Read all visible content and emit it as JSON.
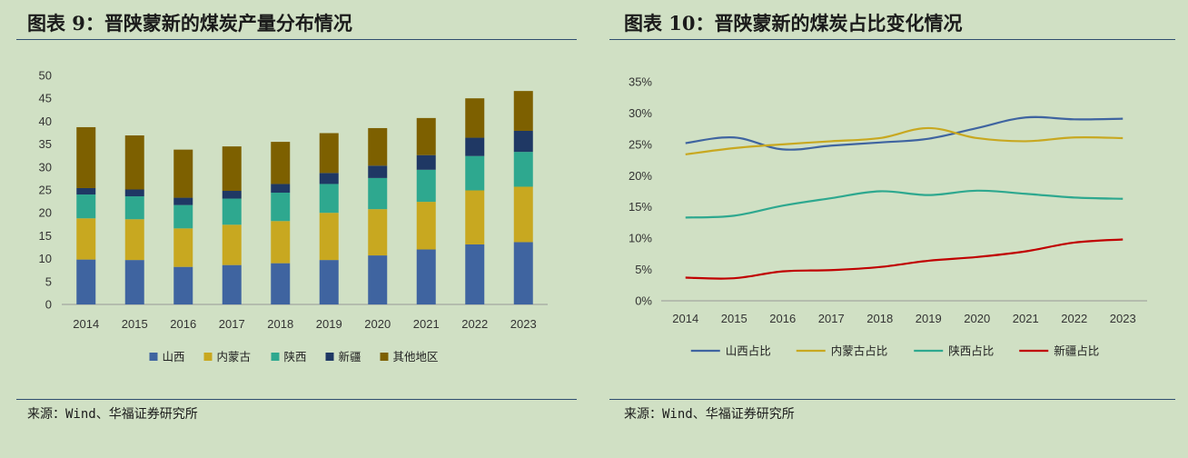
{
  "left_panel": {
    "title": "图表 9：晋陕蒙新的煤炭产量分布情况",
    "source": "来源：Wind、华福证券研究所"
  },
  "right_panel": {
    "title": "图表 10：晋陕蒙新的煤炭占比变化情况",
    "source": "来源：Wind、华福证券研究所"
  },
  "chart_data": [
    {
      "type": "bar",
      "stacked": true,
      "title": "",
      "categories": [
        "2014",
        "2015",
        "2016",
        "2017",
        "2018",
        "2019",
        "2020",
        "2021",
        "2022",
        "2023"
      ],
      "ylim": [
        0,
        50
      ],
      "yticks": [
        0,
        5,
        10,
        15,
        20,
        25,
        30,
        35,
        40,
        45,
        50
      ],
      "legend_position": "bottom",
      "series": [
        {
          "name": "山西",
          "color": "#3f64a0",
          "values": [
            9.8,
            9.7,
            8.2,
            8.6,
            9.0,
            9.7,
            10.7,
            12.0,
            13.1,
            13.6
          ]
        },
        {
          "name": "内蒙古",
          "color": "#c8a820",
          "values": [
            9.0,
            8.9,
            8.4,
            8.8,
            9.2,
            10.3,
            10.1,
            10.4,
            11.8,
            12.1
          ]
        },
        {
          "name": "陕西",
          "color": "#2ea88f",
          "values": [
            5.2,
            5.0,
            5.1,
            5.7,
            6.2,
            6.3,
            6.8,
            7.0,
            7.5,
            7.6
          ]
        },
        {
          "name": "新疆",
          "color": "#1f3864",
          "values": [
            1.4,
            1.5,
            1.6,
            1.7,
            1.9,
            2.4,
            2.7,
            3.2,
            4.0,
            4.6
          ]
        },
        {
          "name": "其他地区",
          "color": "#7d6000",
          "values": [
            13.3,
            11.8,
            10.5,
            9.7,
            9.2,
            8.7,
            8.2,
            8.1,
            8.6,
            8.7
          ]
        }
      ]
    },
    {
      "type": "line",
      "title": "",
      "categories": [
        "2014",
        "2015",
        "2016",
        "2017",
        "2018",
        "2019",
        "2020",
        "2021",
        "2022",
        "2023"
      ],
      "ylim": [
        0,
        35
      ],
      "yticks": [
        "0%",
        "5%",
        "10%",
        "15%",
        "20%",
        "25%",
        "30%",
        "35%"
      ],
      "ytick_values": [
        0,
        5,
        10,
        15,
        20,
        25,
        30,
        35
      ],
      "unit": "%",
      "legend_position": "bottom",
      "series": [
        {
          "name": "山西占比",
          "color": "#3f64a0",
          "values": [
            25.2,
            26.1,
            24.2,
            24.8,
            25.3,
            25.9,
            27.6,
            29.3,
            29.0,
            29.1
          ]
        },
        {
          "name": "内蒙古占比",
          "color": "#c8a820",
          "values": [
            23.4,
            24.4,
            25.0,
            25.5,
            26.0,
            27.6,
            26.0,
            25.5,
            26.1,
            26.0
          ]
        },
        {
          "name": "陕西占比",
          "color": "#2ea88f",
          "values": [
            13.3,
            13.6,
            15.2,
            16.4,
            17.5,
            16.9,
            17.6,
            17.1,
            16.5,
            16.3
          ]
        },
        {
          "name": "新疆占比",
          "color": "#c00000",
          "values": [
            3.7,
            3.6,
            4.7,
            4.9,
            5.4,
            6.4,
            7.0,
            7.9,
            9.3,
            9.8
          ]
        }
      ]
    }
  ]
}
